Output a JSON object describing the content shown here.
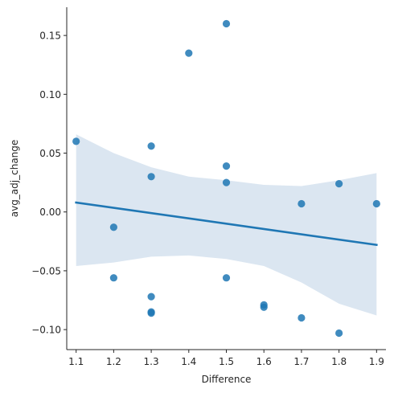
{
  "chart_data": {
    "type": "scatter",
    "title": "",
    "xlabel": "Difference",
    "ylabel": "avg_adj_change",
    "xlim": [
      1.075,
      1.925
    ],
    "ylim": [
      -0.117,
      0.174
    ],
    "xticks": [
      1.1,
      1.2,
      1.3,
      1.4,
      1.5,
      1.6,
      1.7,
      1.8,
      1.9
    ],
    "xtick_labels": [
      "1.1",
      "1.2",
      "1.3",
      "1.4",
      "1.5",
      "1.6",
      "1.7",
      "1.8",
      "1.9"
    ],
    "yticks": [
      -0.1,
      -0.05,
      0.0,
      0.05,
      0.1,
      0.15
    ],
    "ytick_labels": [
      "−0.10",
      "−0.05",
      "0.00",
      "0.05",
      "0.10",
      "0.15"
    ],
    "grid": false,
    "points": [
      {
        "x": 1.1,
        "y": 0.06
      },
      {
        "x": 1.2,
        "y": -0.013
      },
      {
        "x": 1.2,
        "y": -0.056
      },
      {
        "x": 1.3,
        "y": 0.056
      },
      {
        "x": 1.3,
        "y": 0.03
      },
      {
        "x": 1.3,
        "y": -0.072
      },
      {
        "x": 1.3,
        "y": -0.085
      },
      {
        "x": 1.3,
        "y": -0.086
      },
      {
        "x": 1.4,
        "y": 0.135
      },
      {
        "x": 1.5,
        "y": 0.16
      },
      {
        "x": 1.5,
        "y": 0.039
      },
      {
        "x": 1.5,
        "y": 0.025
      },
      {
        "x": 1.5,
        "y": -0.056
      },
      {
        "x": 1.6,
        "y": -0.079
      },
      {
        "x": 1.6,
        "y": -0.081
      },
      {
        "x": 1.7,
        "y": 0.007
      },
      {
        "x": 1.7,
        "y": -0.09
      },
      {
        "x": 1.8,
        "y": 0.024
      },
      {
        "x": 1.8,
        "y": -0.103
      },
      {
        "x": 1.9,
        "y": 0.007
      }
    ],
    "regression_line": {
      "x": [
        1.1,
        1.9
      ],
      "y": [
        0.008,
        -0.028
      ]
    },
    "confidence_band": {
      "x": [
        1.1,
        1.2,
        1.3,
        1.4,
        1.5,
        1.6,
        1.7,
        1.8,
        1.9
      ],
      "upper": [
        0.066,
        0.05,
        0.038,
        0.03,
        0.027,
        0.023,
        0.022,
        0.027,
        0.033
      ],
      "lower": [
        -0.046,
        -0.043,
        -0.038,
        -0.037,
        -0.04,
        -0.046,
        -0.06,
        -0.078,
        -0.088
      ]
    },
    "colors": {
      "point": "#1f77b4",
      "line": "#1f77b4",
      "band": "#dbe6f1",
      "axis": "#262626"
    }
  }
}
